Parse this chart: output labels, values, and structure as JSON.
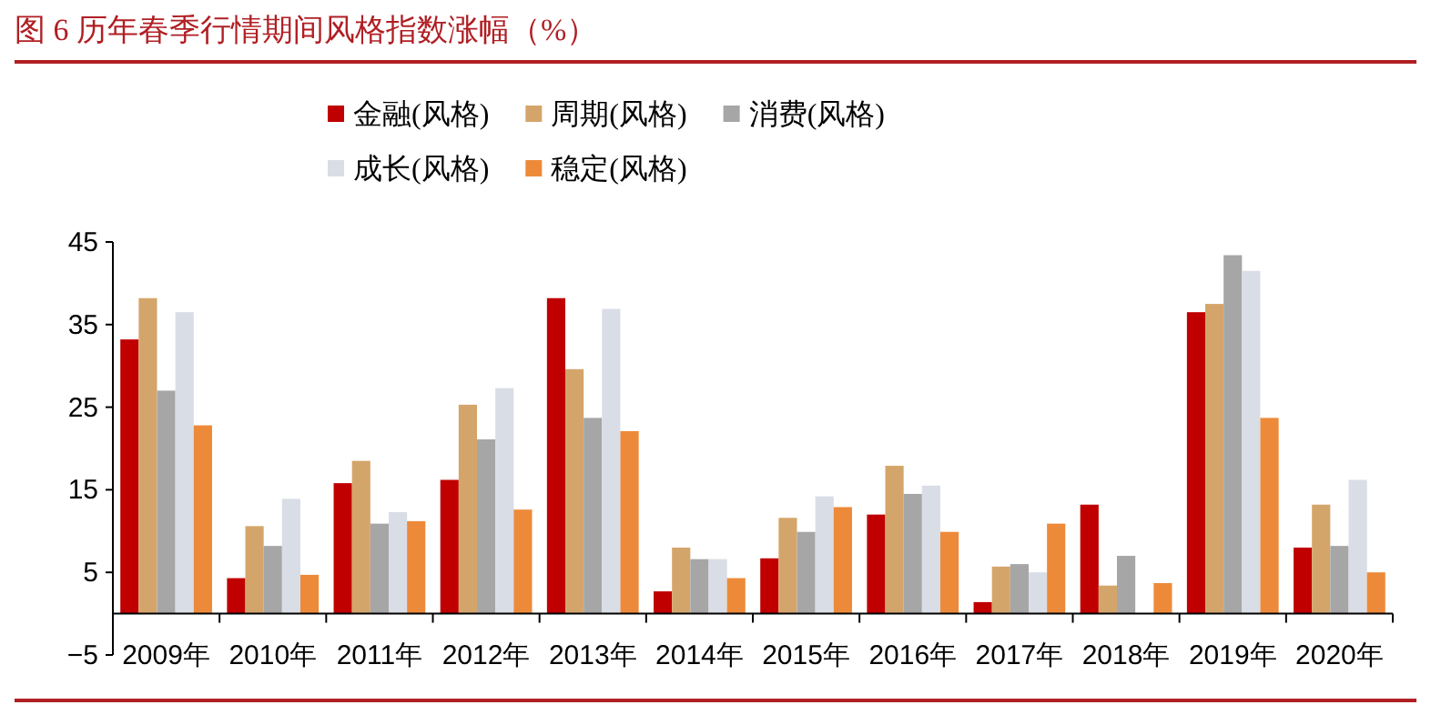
{
  "chart_data": {
    "type": "bar",
    "title": "图 6   历年春季行情期间风格指数涨幅（%）",
    "categories": [
      "2009年",
      "2010年",
      "2011年",
      "2012年",
      "2013年",
      "2014年",
      "2015年",
      "2016年",
      "2017年",
      "2018年",
      "2019年",
      "2020年"
    ],
    "series": [
      {
        "name": "金融(风格)",
        "color": "#c00000",
        "values": [
          33.2,
          4.3,
          15.8,
          16.2,
          38.2,
          2.7,
          6.7,
          12.0,
          1.4,
          13.2,
          36.5,
          8.0
        ]
      },
      {
        "name": "周期(风格)",
        "color": "#d4a56a",
        "values": [
          38.2,
          10.6,
          18.5,
          25.3,
          29.6,
          8.0,
          11.6,
          17.9,
          5.7,
          3.4,
          37.5,
          13.2
        ]
      },
      {
        "name": "消费(风格)",
        "color": "#a6a6a6",
        "values": [
          27.0,
          8.2,
          10.9,
          21.1,
          23.7,
          6.6,
          9.9,
          14.5,
          6.0,
          7.0,
          43.4,
          8.2
        ]
      },
      {
        "name": "成长(风格)",
        "color": "#d9dde6",
        "values": [
          36.5,
          13.9,
          12.3,
          27.3,
          36.9,
          6.6,
          14.2,
          15.5,
          5.0,
          null,
          41.5,
          16.2
        ]
      },
      {
        "name": "稳定(风格)",
        "color": "#ed8a3a",
        "values": [
          22.8,
          4.7,
          11.2,
          12.6,
          22.1,
          4.3,
          12.9,
          9.9,
          10.9,
          3.7,
          23.7,
          5.0
        ]
      }
    ],
    "ylim": [
      -5,
      45
    ],
    "yticks": [
      -5,
      5,
      15,
      25,
      35,
      45
    ],
    "legend": "top"
  }
}
